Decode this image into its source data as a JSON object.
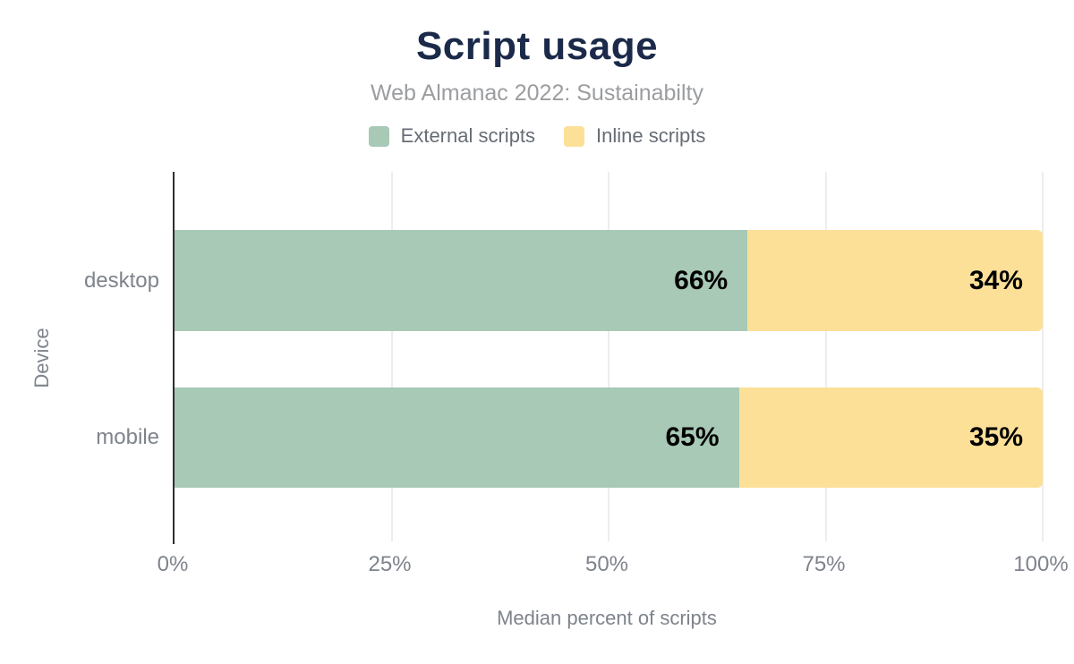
{
  "chart_data": {
    "type": "bar",
    "orientation": "horizontal",
    "stacked": true,
    "title": "Script usage",
    "subtitle": "Web Almanac 2022: Sustainabilty",
    "xlabel": "Median percent of scripts",
    "ylabel": "Device",
    "categories": [
      "desktop",
      "mobile"
    ],
    "series": [
      {
        "name": "External scripts",
        "color": "#a7c9b6",
        "values": [
          66,
          65
        ]
      },
      {
        "name": "Inline scripts",
        "color": "#fce098",
        "values": [
          34,
          35
        ]
      }
    ],
    "data_labels": [
      [
        "66%",
        "34%"
      ],
      [
        "65%",
        "35%"
      ]
    ],
    "xlim": [
      0,
      100
    ],
    "x_ticks": [
      0,
      25,
      50,
      75,
      100
    ],
    "x_tick_labels": [
      "0%",
      "25%",
      "50%",
      "75%",
      "100%"
    ],
    "grid": true,
    "gridline_ticks": [
      25,
      50,
      75,
      100
    ],
    "legend_position": "top"
  },
  "colors": {
    "background": "#ffffff",
    "title": "#1b2a4a",
    "subtitle": "#9b9da0",
    "legend_text": "#666d75",
    "axis_text": "#7e838c",
    "axis_line": "#2f2f2f",
    "gridline": "#ededed",
    "data_label": "#000000"
  }
}
